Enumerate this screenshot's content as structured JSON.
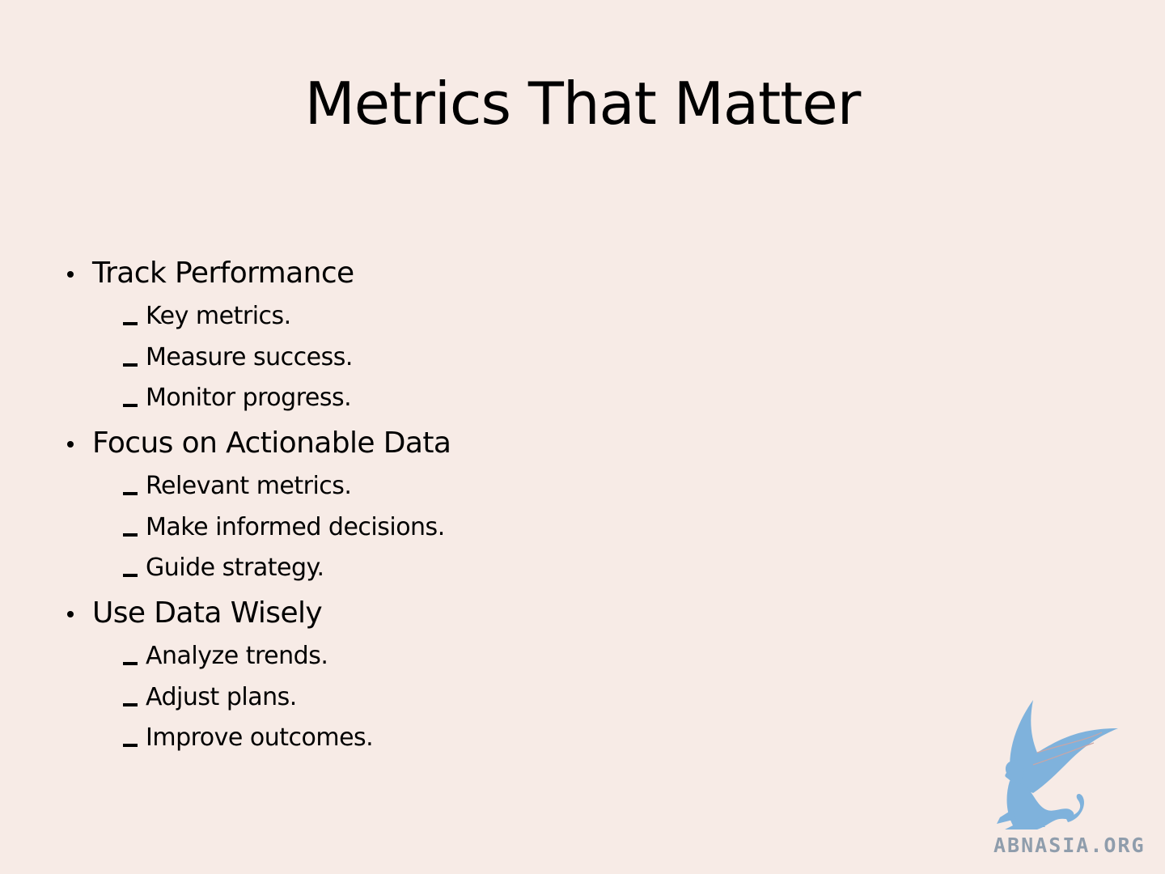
{
  "slide": {
    "title": "Metrics That Matter",
    "sections": [
      {
        "heading": "Track Performance",
        "items": [
          "Key metrics.",
          "Measure success.",
          "Monitor progress."
        ]
      },
      {
        "heading": "Focus on Actionable Data",
        "items": [
          "Relevant metrics.",
          "Make informed decisions.",
          "Guide strategy."
        ]
      },
      {
        "heading": "Use Data Wisely",
        "items": [
          "Analyze trends.",
          "Adjust plans.",
          "Improve outcomes."
        ]
      }
    ]
  },
  "logo": {
    "text": "ABNASIA.ORG",
    "icon": "griffin-icon",
    "color": "#7fb2dc"
  },
  "colors": {
    "background": "#f7ebe6",
    "text": "#000000"
  }
}
